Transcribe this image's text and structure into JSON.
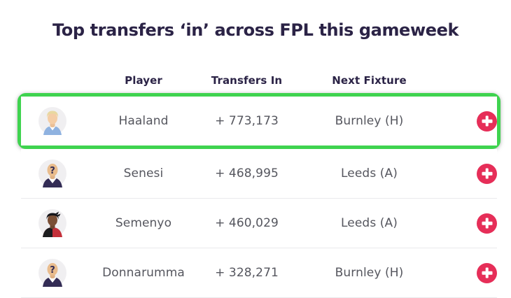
{
  "page": {
    "title": "Top transfers ‘in’ across FPL this gameweek"
  },
  "table": {
    "headers": {
      "player": "Player",
      "transfers_in": "Transfers In",
      "next_fixture": "Next Fixture"
    },
    "rows": [
      {
        "player": "Haaland",
        "transfers_in": "+ 773,173",
        "next_fixture": "Burnley (H)",
        "avatar": "haaland",
        "highlighted": true
      },
      {
        "player": "Senesi",
        "transfers_in": "+ 468,995",
        "next_fixture": "Leeds (A)",
        "avatar": "placeholder",
        "highlighted": false
      },
      {
        "player": "Semenyo",
        "transfers_in": "+ 460,029",
        "next_fixture": "Leeds (A)",
        "avatar": "semenyo",
        "highlighted": false
      },
      {
        "player": "Donnarumma",
        "transfers_in": "+ 328,271",
        "next_fixture": "Burnley (H)",
        "avatar": "placeholder",
        "highlighted": false
      }
    ]
  },
  "colors": {
    "title_navy": "#2b2346",
    "row_text_gray": "#55565e",
    "accent_pink": "#e62e58",
    "highlight_green": "#3fd34f",
    "divider_gray": "#e9e9ec",
    "avatar_bg": "#f0eff1"
  }
}
